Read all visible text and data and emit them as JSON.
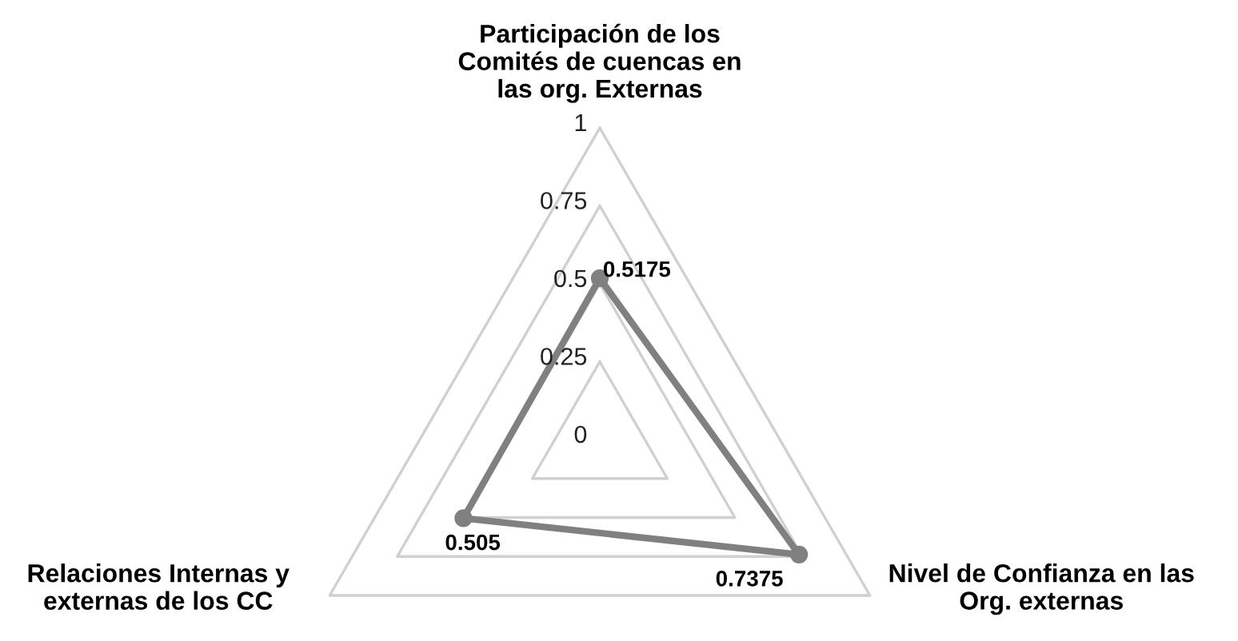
{
  "chart_data": {
    "type": "radar",
    "categories": [
      "Participación de los\nComités de cuencas en\nlas org. Externas",
      "Nivel de Confianza en las\nOrg. externas",
      "Relaciones Internas y\nexternas de los CC"
    ],
    "series": [
      {
        "color": "#808080",
        "values": [
          0.5175,
          0.7375,
          0.505
        ]
      }
    ],
    "ylim": [
      0,
      1
    ],
    "yticks": [
      0,
      0.25,
      0.5,
      0.75,
      1
    ],
    "data_labels": true,
    "marker": "circle",
    "line_style": "solid",
    "grid": true
  }
}
